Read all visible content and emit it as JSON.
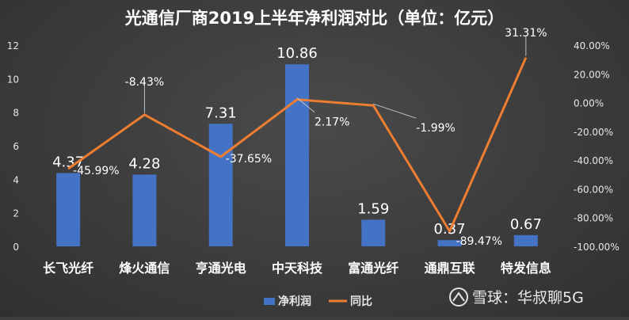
{
  "chart_data": {
    "type": "bar",
    "title": "光通信厂商2019上半年净利润对比（单位：亿元）",
    "categories": [
      "长飞光纤",
      "烽火通信",
      "亨通光电",
      "中天科技",
      "富通光纤",
      "通鼎互联",
      "特发信息"
    ],
    "series": [
      {
        "name": "净利润",
        "type": "bar",
        "axis": "left",
        "color": "#4472c4",
        "values": [
          4.37,
          4.28,
          7.31,
          10.86,
          1.59,
          0.37,
          0.67
        ],
        "labels": [
          "4.37",
          "4.28",
          "7.31",
          "10.86",
          "1.59",
          "0.37",
          "0.67"
        ]
      },
      {
        "name": "同比",
        "type": "line",
        "axis": "right",
        "color": "#ed7d31",
        "values": [
          -45.99,
          -8.43,
          -37.65,
          2.17,
          -1.99,
          -89.47,
          31.31
        ],
        "labels": [
          "-45.99%",
          "-8.43%",
          "-37.65%",
          "2.17%",
          "-1.99%",
          "-89.47%",
          "31.31%"
        ]
      }
    ],
    "y_left": {
      "ylim": [
        0,
        12
      ],
      "ticks": [
        0,
        2,
        4,
        6,
        8,
        10,
        12
      ],
      "tick_labels": [
        "0",
        "2",
        "4",
        "6",
        "8",
        "10",
        "12"
      ]
    },
    "y_right": {
      "ylim": [
        -100,
        40
      ],
      "ticks": [
        -100,
        -80,
        -60,
        -40,
        -20,
        0,
        20,
        40
      ],
      "tick_labels": [
        "-100.00%",
        "-80.00%",
        "-60.00%",
        "-40.00%",
        "-20.00%",
        "0.00%",
        "20.00%",
        "40.00%"
      ]
    },
    "legend": {
      "placement": "bottom",
      "entries": [
        "净利润",
        "同比"
      ]
    },
    "grid": false
  },
  "watermark": "雪球：华叔聊5G",
  "colors": {
    "background": "#3d3d3d",
    "text": "#ffffff",
    "axis_text": "#e6e6e6",
    "leader": "#bfbfbf"
  }
}
